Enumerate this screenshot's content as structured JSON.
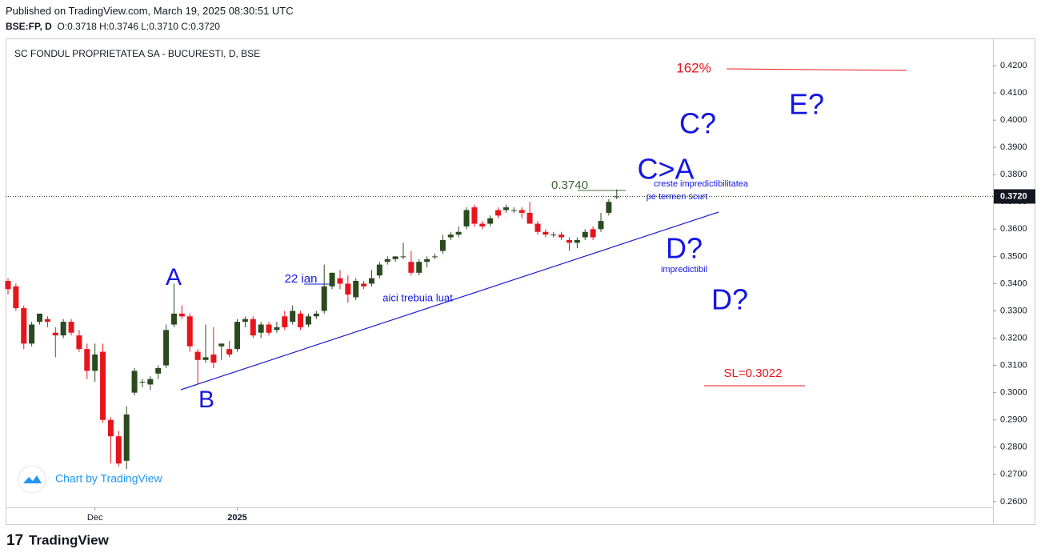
{
  "header": {
    "published": "Published on TradingView.com, March 19, 2025 08:30:51 UTC",
    "symbol": "BSE:FP, D",
    "ohlc": "O:0.3718 H:0.3746 L:0.3710 C:0.3720"
  },
  "chart_data": {
    "type": "candlestick",
    "title": "SC FONDUL PROPRIETATEA SA - BUCURESTI, D, BSE",
    "categories": [
      null,
      null,
      null,
      null,
      null,
      null,
      null,
      null,
      null,
      null,
      null,
      "Dec",
      null,
      null,
      null,
      null,
      null,
      null,
      null,
      null,
      null,
      null,
      null,
      null,
      null,
      null,
      null,
      null,
      null,
      "2025",
      null,
      null,
      null,
      null,
      null,
      null,
      null,
      null,
      null,
      null,
      null,
      null,
      null,
      null,
      null,
      null,
      null,
      null,
      null,
      null,
      null,
      null,
      null,
      null,
      null,
      null,
      null,
      null,
      null,
      null,
      null,
      null,
      null,
      null,
      null,
      null,
      null,
      null,
      null,
      null,
      null,
      null,
      null,
      null,
      null,
      null,
      null,
      null
    ],
    "open": [
      0.341,
      0.339,
      0.331,
      0.318,
      0.326,
      0.327,
      0.322,
      0.321,
      0.326,
      0.321,
      0.316,
      0.308,
      0.315,
      0.29,
      0.284,
      0.275,
      0.3,
      0.304,
      0.303,
      0.307,
      0.31,
      0.325,
      0.329,
      0.328,
      0.315,
      0.312,
      0.314,
      0.317,
      0.316,
      0.316,
      0.326,
      0.327,
      0.322,
      0.325,
      0.323,
      0.328,
      0.326,
      0.329,
      0.325,
      0.328,
      0.33,
      0.339,
      0.342,
      0.34,
      0.335,
      0.34,
      0.34,
      0.343,
      0.348,
      0.349,
      0.35,
      0.348,
      0.344,
      0.348,
      0.35,
      0.352,
      0.357,
      0.358,
      0.361,
      0.368,
      0.362,
      0.362,
      0.367,
      0.367,
      0.367,
      0.367,
      0.366,
      0.362,
      0.359,
      0.358,
      0.358,
      0.356,
      0.355,
      0.357,
      0.36,
      0.36,
      0.366,
      0.3718
    ],
    "high": [
      0.342,
      0.34,
      0.332,
      0.326,
      0.329,
      0.328,
      0.324,
      0.327,
      0.327,
      0.323,
      0.318,
      0.318,
      0.318,
      0.291,
      0.286,
      0.295,
      0.309,
      0.305,
      0.306,
      0.31,
      0.325,
      0.34,
      0.332,
      0.329,
      0.316,
      0.325,
      0.324,
      0.318,
      0.319,
      0.327,
      0.328,
      0.328,
      0.326,
      0.326,
      0.326,
      0.33,
      0.332,
      0.33,
      0.329,
      0.33,
      0.347,
      0.344,
      0.345,
      0.343,
      0.342,
      0.341,
      0.345,
      0.348,
      0.35,
      0.35,
      0.355,
      0.352,
      0.349,
      0.35,
      0.351,
      0.358,
      0.359,
      0.361,
      0.368,
      0.369,
      0.363,
      0.365,
      0.368,
      0.369,
      0.368,
      0.368,
      0.37,
      0.363,
      0.36,
      0.359,
      0.359,
      0.357,
      0.357,
      0.36,
      0.361,
      0.366,
      0.371,
      0.3746
    ],
    "low": [
      0.336,
      0.33,
      0.316,
      0.317,
      0.325,
      0.324,
      0.313,
      0.32,
      0.321,
      0.315,
      0.305,
      0.304,
      0.289,
      0.274,
      0.273,
      0.272,
      0.299,
      0.302,
      0.301,
      0.305,
      0.309,
      0.324,
      0.327,
      0.315,
      0.303,
      0.311,
      0.309,
      0.312,
      0.313,
      0.315,
      0.324,
      0.32,
      0.32,
      0.321,
      0.322,
      0.323,
      0.325,
      0.323,
      0.324,
      0.327,
      0.329,
      0.338,
      0.338,
      0.333,
      0.334,
      0.338,
      0.339,
      0.342,
      0.347,
      0.348,
      0.349,
      0.343,
      0.343,
      0.346,
      0.349,
      0.351,
      0.356,
      0.357,
      0.36,
      0.361,
      0.36,
      0.361,
      0.364,
      0.366,
      0.366,
      0.364,
      0.362,
      0.358,
      0.357,
      0.357,
      0.356,
      0.352,
      0.353,
      0.356,
      0.356,
      0.359,
      0.365,
      0.371
    ],
    "close": [
      0.338,
      0.331,
      0.318,
      0.325,
      0.329,
      0.326,
      0.321,
      0.326,
      0.322,
      0.316,
      0.308,
      0.314,
      0.29,
      0.284,
      0.274,
      0.292,
      0.308,
      0.304,
      0.305,
      0.309,
      0.323,
      0.329,
      0.328,
      0.317,
      0.312,
      0.313,
      0.311,
      0.318,
      0.314,
      0.326,
      0.327,
      0.321,
      0.325,
      0.322,
      0.324,
      0.324,
      0.33,
      0.324,
      0.328,
      0.329,
      0.339,
      0.344,
      0.34,
      0.336,
      0.341,
      0.339,
      0.342,
      0.347,
      0.349,
      0.35,
      0.35,
      0.344,
      0.348,
      0.349,
      0.35,
      0.356,
      0.358,
      0.359,
      0.367,
      0.362,
      0.361,
      0.364,
      0.365,
      0.368,
      0.367,
      0.366,
      0.362,
      0.359,
      0.358,
      0.358,
      0.357,
      0.355,
      0.356,
      0.359,
      0.357,
      0.363,
      0.37,
      0.372
    ],
    "up_color": "#2b4a1f",
    "down_color": "#e8141b",
    "ylim": [
      0.2579,
      0.4297
    ],
    "yticks": [
      {
        "value": 0.26,
        "label": "0.2600"
      },
      {
        "value": 0.27,
        "label": "0.2700"
      },
      {
        "value": 0.28,
        "label": "0.2800"
      },
      {
        "value": 0.29,
        "label": "0.2900"
      },
      {
        "value": 0.3,
        "label": "0.3000"
      },
      {
        "value": 0.31,
        "label": "0.3100"
      },
      {
        "value": 0.32,
        "label": "0.3200"
      },
      {
        "value": 0.33,
        "label": "0.3300"
      },
      {
        "value": 0.34,
        "label": "0.3400"
      },
      {
        "value": 0.35,
        "label": "0.3500"
      },
      {
        "value": 0.36,
        "label": "0.3600"
      },
      {
        "value": 0.37,
        "label": "0.3700"
      },
      {
        "value": 0.38,
        "label": "0.3800"
      },
      {
        "value": 0.39,
        "label": "0.3900"
      },
      {
        "value": 0.4,
        "label": "0.4000"
      },
      {
        "value": 0.41,
        "label": "0.4100"
      },
      {
        "value": 0.42,
        "label": "0.4200"
      }
    ],
    "last_price": {
      "value": 0.372,
      "label": "0.3720"
    },
    "annotations": [
      "A",
      "B",
      "22 ian",
      "aici trebuia luat",
      "0.3740",
      "C>A",
      "creste impredictibilitatea",
      "pe termen scurt",
      "C?",
      "E?",
      "162%",
      "D?",
      "impredictibil",
      "D?",
      "SL=0.3022"
    ],
    "watermark": "Chart by TradingView"
  },
  "footer": {
    "brand": "TradingView"
  }
}
